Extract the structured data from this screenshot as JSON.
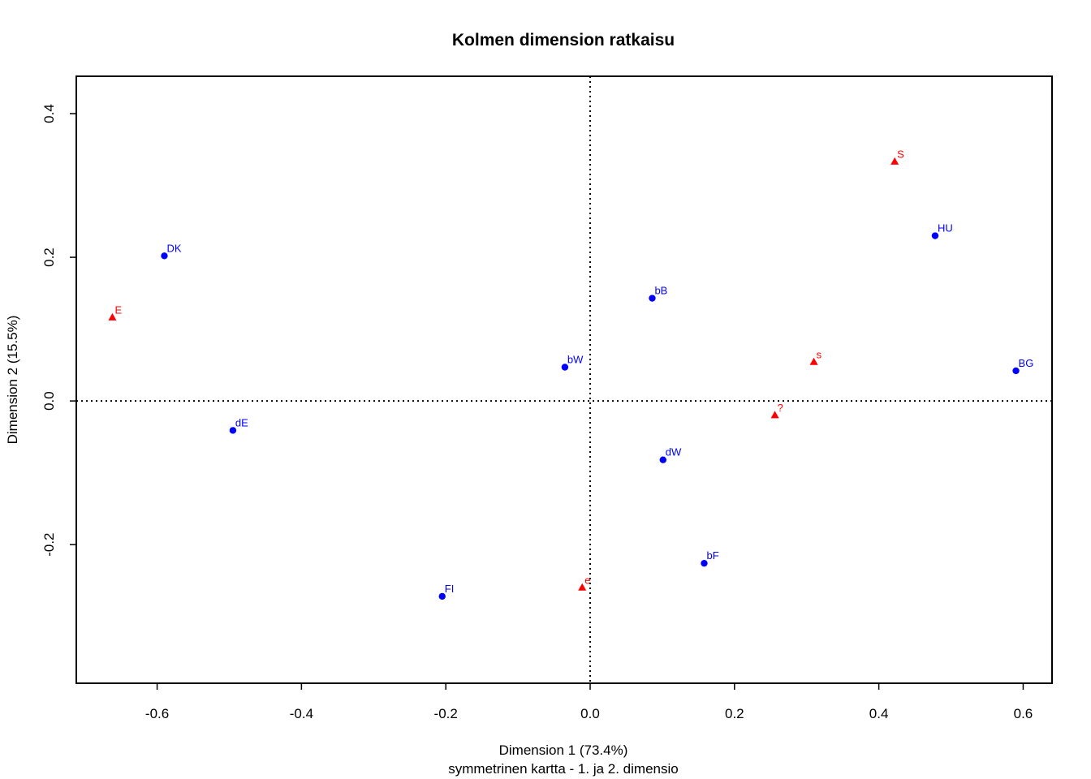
{
  "chart_data": {
    "type": "scatter",
    "title": "Kolmen dimension ratkaisu",
    "xlabel": "Dimension 1 (73.4%)",
    "xlabel2": "symmetrinen kartta - 1. ja 2. dimensio",
    "ylabel": "Dimension 2 (15.5%)",
    "xlim": [
      -0.712,
      0.64
    ],
    "ylim": [
      -0.393,
      0.452
    ],
    "xticks": [
      "-0.6",
      "-0.4",
      "-0.2",
      "0.0",
      "0.2",
      "0.4",
      "0.6"
    ],
    "xtick_values": [
      -0.6,
      -0.4,
      -0.2,
      0.0,
      0.2,
      0.4,
      0.6
    ],
    "yticks": [
      "-0.2",
      "0.0",
      "0.2",
      "0.4"
    ],
    "ytick_values": [
      -0.2,
      0.0,
      0.2,
      0.4
    ],
    "reference_lines": {
      "x": 0,
      "y": 0,
      "style": "dotted"
    },
    "grid": false,
    "series": [
      {
        "marker": "circle",
        "color": "#0000ff",
        "points": [
          {
            "label": "DK",
            "x": -0.59,
            "y": 0.202
          },
          {
            "label": "dE",
            "x": -0.495,
            "y": -0.041
          },
          {
            "label": "FI",
            "x": -0.205,
            "y": -0.272
          },
          {
            "label": "bW",
            "x": -0.035,
            "y": 0.047
          },
          {
            "label": "bB",
            "x": 0.086,
            "y": 0.143
          },
          {
            "label": "dW",
            "x": 0.101,
            "y": -0.082
          },
          {
            "label": "bF",
            "x": 0.158,
            "y": -0.226
          },
          {
            "label": "HU",
            "x": 0.478,
            "y": 0.23
          },
          {
            "label": "BG",
            "x": 0.59,
            "y": 0.042
          }
        ]
      },
      {
        "marker": "triangle",
        "color": "#ff0000",
        "points": [
          {
            "label": "E",
            "x": -0.662,
            "y": 0.116
          },
          {
            "label": "e",
            "x": -0.011,
            "y": -0.26
          },
          {
            "label": "?",
            "x": 0.256,
            "y": -0.02
          },
          {
            "label": "s",
            "x": 0.31,
            "y": 0.054
          },
          {
            "label": "S",
            "x": 0.422,
            "y": 0.333
          }
        ]
      }
    ]
  }
}
